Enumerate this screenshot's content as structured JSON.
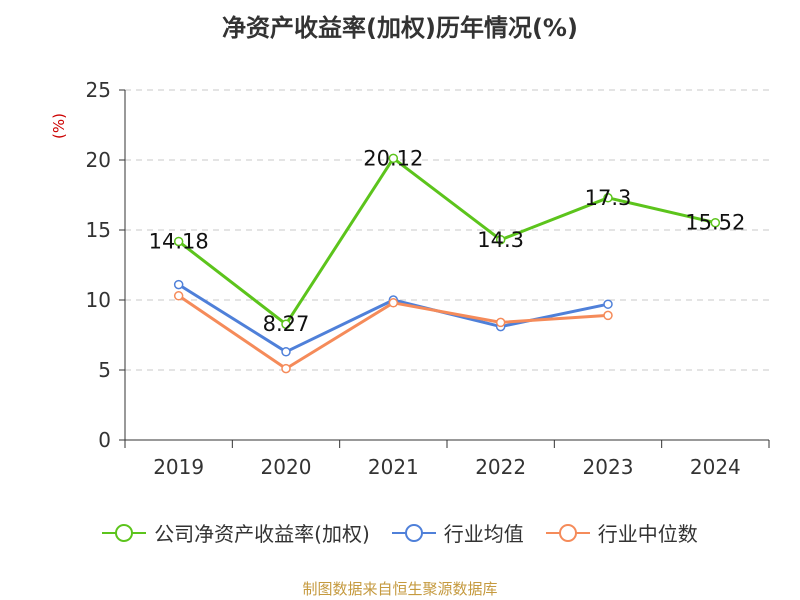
{
  "title": "净资产收益率(加权)历年情况(%)",
  "source": "制图数据来自恒生聚源数据库",
  "chart_data": {
    "type": "line",
    "title": "净资产收益率(加权)历年情况(%)",
    "ylabel": "(%)",
    "ylim": [
      0,
      25
    ],
    "yticks": [
      "0",
      "5",
      "10",
      "15",
      "20",
      "25"
    ],
    "grid": true,
    "legend": "bottom",
    "categories": [
      "2019",
      "2020",
      "2021",
      "2022",
      "2023",
      "2024"
    ],
    "series": [
      {
        "name": "公司净资产收益率(加权)",
        "color": "#5cc41c",
        "values": [
          14.18,
          8.27,
          20.12,
          14.3,
          17.3,
          15.52
        ],
        "labels": [
          "14.18",
          "8.27",
          "20.12",
          "14.3",
          "17.3",
          "15.52"
        ]
      },
      {
        "name": "行业均值",
        "color": "#4f80d9",
        "values": [
          11.1,
          6.3,
          10.0,
          8.1,
          9.7,
          null
        ]
      },
      {
        "name": "行业中位数",
        "color": "#f58b5a",
        "values": [
          10.3,
          5.1,
          9.8,
          8.4,
          8.9,
          null
        ]
      }
    ]
  }
}
